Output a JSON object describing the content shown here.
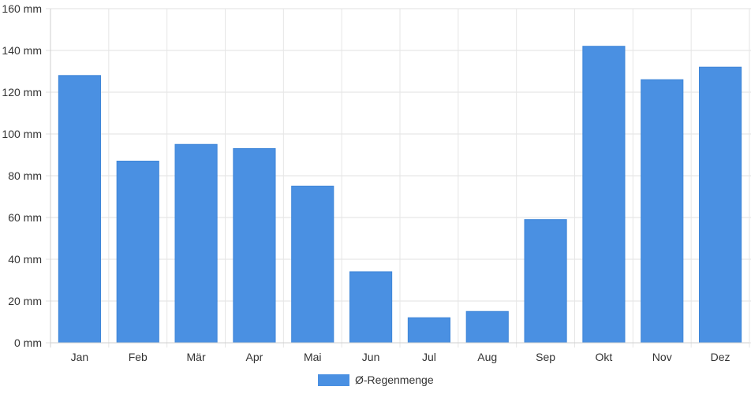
{
  "chart_data": {
    "type": "bar",
    "categories": [
      "Jan",
      "Feb",
      "Mär",
      "Apr",
      "Mai",
      "Jun",
      "Jul",
      "Aug",
      "Sep",
      "Okt",
      "Nov",
      "Dez"
    ],
    "series": [
      {
        "name": "Ø-Regenmenge",
        "values": [
          128,
          87,
          95,
          93,
          75,
          34,
          12,
          15,
          59,
          142,
          126,
          132
        ],
        "color": "#4a90e2"
      }
    ],
    "ylim": [
      0,
      160
    ],
    "y_ticks": [
      "0 mm",
      "20 mm",
      "40 mm",
      "60 mm",
      "80 mm",
      "100 mm",
      "120 mm",
      "140 mm",
      "160 mm"
    ],
    "y_tick_values": [
      0,
      20,
      40,
      60,
      80,
      100,
      120,
      140,
      160
    ],
    "grid": true,
    "legend_position": "bottom"
  }
}
